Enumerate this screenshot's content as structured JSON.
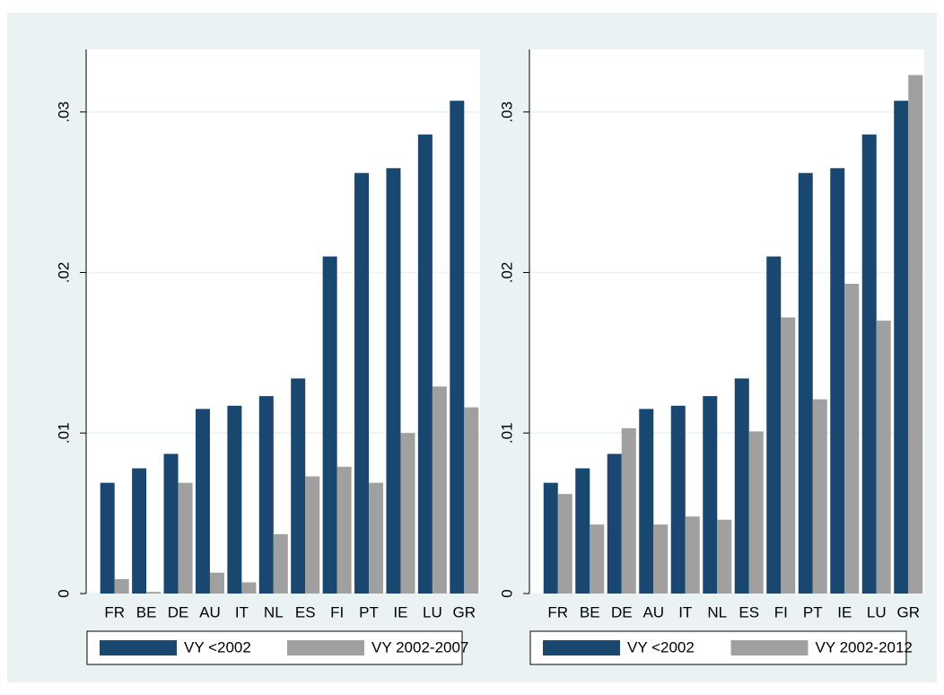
{
  "chart_data": [
    {
      "type": "bar",
      "categories": [
        "FR",
        "BE",
        "DE",
        "AU",
        "IT",
        "NL",
        "ES",
        "FI",
        "PT",
        "IE",
        "LU",
        "GR"
      ],
      "series": [
        {
          "name": "VY <2002",
          "color": "#1a476f",
          "values": [
            0.0069,
            0.0078,
            0.0087,
            0.0115,
            0.0117,
            0.0123,
            0.0134,
            0.021,
            0.0262,
            0.0265,
            0.0286,
            0.0307
          ]
        },
        {
          "name": "VY 2002-2007",
          "color": "#a0a0a0",
          "values": [
            0.0009,
            0.0001,
            0.0069,
            0.0013,
            0.0007,
            0.0037,
            0.0073,
            0.0079,
            0.0069,
            0.01,
            0.0129,
            0.0116
          ]
        }
      ],
      "ylim": [
        0,
        0.0339
      ],
      "yticks": [
        0,
        {
          "value": 0.01,
          "label": ".01"
        },
        {
          "value": 0.02,
          "label": ".02"
        },
        {
          "value": 0.03,
          "label": ".03"
        }
      ],
      "grid": true,
      "legend": "bottom"
    },
    {
      "type": "bar",
      "categories": [
        "FR",
        "BE",
        "DE",
        "AU",
        "IT",
        "NL",
        "ES",
        "FI",
        "PT",
        "IE",
        "LU",
        "GR"
      ],
      "series": [
        {
          "name": "VY <2002",
          "color": "#1a476f",
          "values": [
            0.0069,
            0.0078,
            0.0087,
            0.0115,
            0.0117,
            0.0123,
            0.0134,
            0.021,
            0.0262,
            0.0265,
            0.0286,
            0.0307
          ]
        },
        {
          "name": "VY 2002-2012",
          "color": "#a0a0a0",
          "values": [
            0.0062,
            0.0043,
            0.0103,
            0.0043,
            0.0048,
            0.0046,
            0.0101,
            0.0172,
            0.0121,
            0.0193,
            0.017,
            0.0323
          ]
        }
      ],
      "ylim": [
        0,
        0.0339
      ],
      "yticks": [
        0,
        {
          "value": 0.01,
          "label": ".01"
        },
        {
          "value": 0.02,
          "label": ".02"
        },
        {
          "value": 0.03,
          "label": ".03"
        }
      ],
      "grid": true,
      "legend": "bottom"
    }
  ]
}
